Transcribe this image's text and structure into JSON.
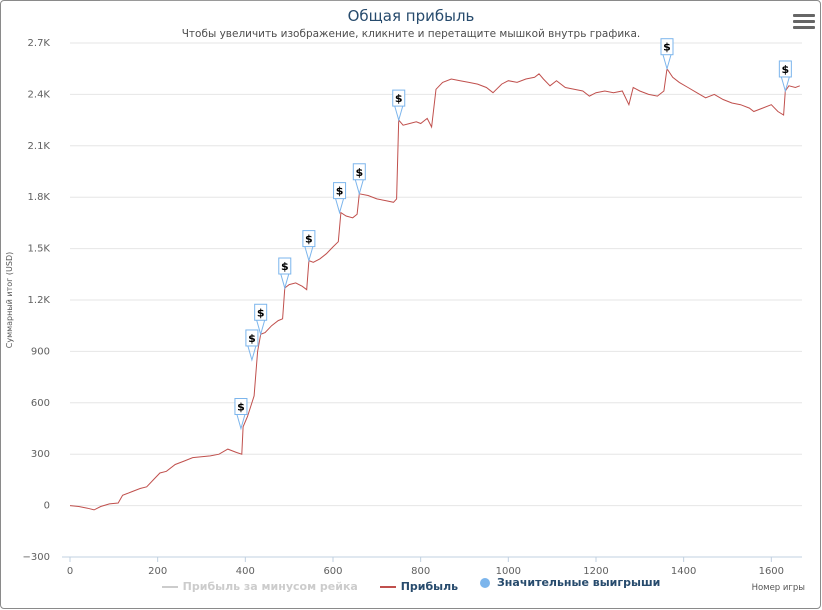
{
  "chart_data": {
    "type": "line",
    "title": "Общая прибыль",
    "subtitle": "Чтобы увеличить изображение, кликните и перетащите мышкой внутрь графика.",
    "ylabel": "Суммарный итог (USD)",
    "xlabel": "Номер игры",
    "xlim": [
      0,
      1670
    ],
    "ylim": [
      -300,
      2700
    ],
    "x_ticks": [
      0,
      200,
      400,
      600,
      800,
      1000,
      1200,
      1400,
      1600
    ],
    "y_ticks": [
      -300,
      0,
      300,
      600,
      900,
      1200,
      1500,
      1800,
      2100,
      2400,
      2700
    ],
    "y_tick_labels": [
      "−300",
      "0",
      "300",
      "600",
      "900",
      "1.2K",
      "1.5K",
      "1.8K",
      "2.1K",
      "2.4K",
      "2.7K"
    ],
    "grid": true,
    "legend_position": "bottom",
    "series": [
      {
        "name": "Прибыль за минусом рейка",
        "color": "#cccccc",
        "hidden": true,
        "points": []
      },
      {
        "name": "Прибыль",
        "color": "#c0504d",
        "points": [
          [
            0,
            0
          ],
          [
            20,
            -5
          ],
          [
            40,
            -15
          ],
          [
            55,
            -25
          ],
          [
            70,
            -5
          ],
          [
            90,
            10
          ],
          [
            110,
            15
          ],
          [
            120,
            60
          ],
          [
            140,
            80
          ],
          [
            160,
            100
          ],
          [
            175,
            110
          ],
          [
            190,
            150
          ],
          [
            205,
            190
          ],
          [
            220,
            200
          ],
          [
            240,
            240
          ],
          [
            260,
            260
          ],
          [
            280,
            280
          ],
          [
            300,
            285
          ],
          [
            320,
            290
          ],
          [
            340,
            300
          ],
          [
            360,
            330
          ],
          [
            380,
            310
          ],
          [
            392,
            300
          ],
          [
            395,
            460
          ],
          [
            405,
            520
          ],
          [
            420,
            640
          ],
          [
            428,
            900
          ],
          [
            435,
            1000
          ],
          [
            445,
            1010
          ],
          [
            460,
            1050
          ],
          [
            475,
            1080
          ],
          [
            485,
            1090
          ],
          [
            490,
            1270
          ],
          [
            500,
            1290
          ],
          [
            515,
            1300
          ],
          [
            530,
            1280
          ],
          [
            540,
            1260
          ],
          [
            545,
            1430
          ],
          [
            555,
            1420
          ],
          [
            570,
            1440
          ],
          [
            585,
            1470
          ],
          [
            600,
            1510
          ],
          [
            612,
            1540
          ],
          [
            618,
            1710
          ],
          [
            630,
            1690
          ],
          [
            645,
            1680
          ],
          [
            655,
            1700
          ],
          [
            660,
            1820
          ],
          [
            680,
            1810
          ],
          [
            700,
            1790
          ],
          [
            720,
            1780
          ],
          [
            738,
            1770
          ],
          [
            745,
            1790
          ],
          [
            750,
            2250
          ],
          [
            760,
            2220
          ],
          [
            775,
            2230
          ],
          [
            790,
            2240
          ],
          [
            800,
            2230
          ],
          [
            815,
            2260
          ],
          [
            825,
            2210
          ],
          [
            835,
            2430
          ],
          [
            850,
            2470
          ],
          [
            870,
            2490
          ],
          [
            890,
            2480
          ],
          [
            910,
            2470
          ],
          [
            930,
            2460
          ],
          [
            950,
            2440
          ],
          [
            965,
            2410
          ],
          [
            985,
            2460
          ],
          [
            1000,
            2480
          ],
          [
            1020,
            2470
          ],
          [
            1040,
            2490
          ],
          [
            1060,
            2500
          ],
          [
            1070,
            2520
          ],
          [
            1080,
            2490
          ],
          [
            1095,
            2450
          ],
          [
            1110,
            2480
          ],
          [
            1130,
            2440
          ],
          [
            1150,
            2430
          ],
          [
            1170,
            2420
          ],
          [
            1185,
            2390
          ],
          [
            1200,
            2410
          ],
          [
            1220,
            2420
          ],
          [
            1240,
            2410
          ],
          [
            1260,
            2420
          ],
          [
            1275,
            2340
          ],
          [
            1285,
            2440
          ],
          [
            1300,
            2420
          ],
          [
            1320,
            2400
          ],
          [
            1340,
            2390
          ],
          [
            1355,
            2420
          ],
          [
            1362,
            2550
          ],
          [
            1375,
            2500
          ],
          [
            1390,
            2470
          ],
          [
            1410,
            2440
          ],
          [
            1430,
            2410
          ],
          [
            1450,
            2380
          ],
          [
            1470,
            2400
          ],
          [
            1490,
            2370
          ],
          [
            1510,
            2350
          ],
          [
            1530,
            2340
          ],
          [
            1550,
            2320
          ],
          [
            1560,
            2300
          ],
          [
            1580,
            2320
          ],
          [
            1600,
            2340
          ],
          [
            1615,
            2300
          ],
          [
            1628,
            2280
          ],
          [
            1632,
            2420
          ],
          [
            1640,
            2450
          ],
          [
            1655,
            2440
          ],
          [
            1665,
            2450
          ]
        ]
      },
      {
        "name": "Значительные выигрыши",
        "color": "#7cb5ec",
        "flag_label": "$",
        "points": [
          [
            390,
            450
          ],
          [
            415,
            850
          ],
          [
            435,
            1000
          ],
          [
            490,
            1270
          ],
          [
            545,
            1430
          ],
          [
            615,
            1710
          ],
          [
            660,
            1820
          ],
          [
            750,
            2250
          ],
          [
            1362,
            2550
          ],
          [
            1632,
            2420
          ]
        ]
      }
    ]
  }
}
